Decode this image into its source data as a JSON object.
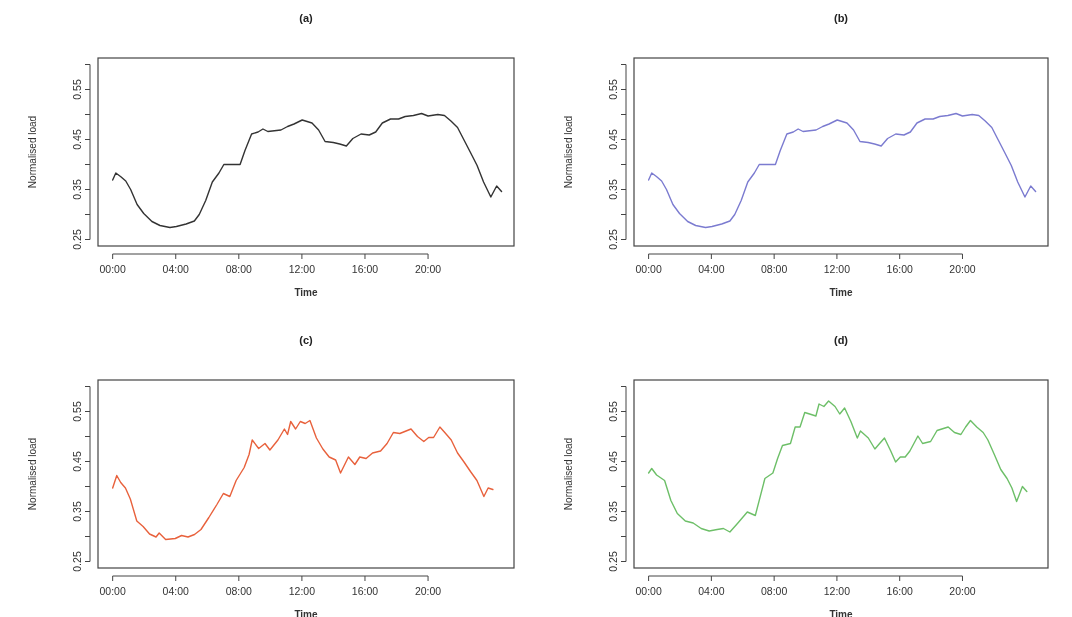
{
  "chart_data": [
    {
      "type": "line",
      "title": "(a)",
      "xlabel": "Time",
      "ylabel": "Normalised load",
      "xlim": [
        -0.93,
        25.45
      ],
      "ylim": [
        0.237,
        0.613
      ],
      "xticks": [
        {
          "value": 0,
          "label": "00:00"
        },
        {
          "value": 4,
          "label": "04:00"
        },
        {
          "value": 8,
          "label": "08:00"
        },
        {
          "value": 12,
          "label": "12:00"
        },
        {
          "value": 16,
          "label": "16:00"
        },
        {
          "value": 20,
          "label": "20:00"
        }
      ],
      "yticks": [
        {
          "value": 0.25,
          "label": "0.25"
        },
        {
          "value": 0.3,
          "label": null
        },
        {
          "value": 0.35,
          "label": "0.35"
        },
        {
          "value": 0.4,
          "label": null
        },
        {
          "value": 0.45,
          "label": "0.45"
        },
        {
          "value": 0.5,
          "label": null
        },
        {
          "value": 0.55,
          "label": "0.55"
        },
        {
          "value": 0.6,
          "label": null
        }
      ],
      "x": [
        0,
        0.2,
        0.5,
        0.83,
        1.14,
        1.55,
        1.97,
        2.49,
        3.0,
        3.63,
        4.04,
        4.66,
        5.18,
        5.49,
        5.9,
        6.32,
        6.74,
        7.05,
        7.56,
        8.08,
        8.39,
        8.81,
        9.22,
        9.53,
        9.84,
        10.67,
        11.09,
        11.5,
        12.02,
        12.64,
        13.06,
        13.47,
        13.99,
        14.4,
        14.82,
        15.23,
        15.75,
        16.27,
        16.68,
        17.1,
        17.62,
        18.13,
        18.55,
        19.07,
        19.59,
        20.0,
        20.62,
        21.04,
        21.45,
        21.87,
        22.28,
        22.69,
        23.11,
        23.52,
        23.98,
        24.35,
        24.66
      ],
      "series": [
        {
          "color": "#333333",
          "values": [
            0.369,
            0.383,
            0.376,
            0.367,
            0.35,
            0.32,
            0.302,
            0.286,
            0.278,
            0.274,
            0.276,
            0.281,
            0.287,
            0.3,
            0.328,
            0.365,
            0.383,
            0.4,
            0.4,
            0.4,
            0.428,
            0.461,
            0.465,
            0.471,
            0.466,
            0.469,
            0.476,
            0.481,
            0.489,
            0.483,
            0.469,
            0.446,
            0.444,
            0.441,
            0.437,
            0.452,
            0.461,
            0.459,
            0.465,
            0.483,
            0.491,
            0.491,
            0.496,
            0.498,
            0.502,
            0.497,
            0.5,
            0.498,
            0.487,
            0.474,
            0.449,
            0.424,
            0.398,
            0.365,
            0.335,
            0.357,
            0.346
          ]
        }
      ]
    },
    {
      "type": "line",
      "title": "(b)",
      "xlabel": "Time",
      "ylabel": "Normalised load",
      "xlim": [
        -0.93,
        25.45
      ],
      "ylim": [
        0.237,
        0.613
      ],
      "xticks": [
        {
          "value": 0,
          "label": "00:00"
        },
        {
          "value": 4,
          "label": "04:00"
        },
        {
          "value": 8,
          "label": "08:00"
        },
        {
          "value": 12,
          "label": "12:00"
        },
        {
          "value": 16,
          "label": "16:00"
        },
        {
          "value": 20,
          "label": "20:00"
        }
      ],
      "yticks": [
        {
          "value": 0.25,
          "label": "0.25"
        },
        {
          "value": 0.3,
          "label": null
        },
        {
          "value": 0.35,
          "label": "0.35"
        },
        {
          "value": 0.4,
          "label": null
        },
        {
          "value": 0.45,
          "label": "0.45"
        },
        {
          "value": 0.5,
          "label": null
        },
        {
          "value": 0.55,
          "label": "0.55"
        },
        {
          "value": 0.6,
          "label": null
        }
      ],
      "x": [
        0,
        0.2,
        0.5,
        0.83,
        1.14,
        1.55,
        1.97,
        2.49,
        3.0,
        3.63,
        4.04,
        4.66,
        5.18,
        5.49,
        5.9,
        6.32,
        6.74,
        7.05,
        7.56,
        8.08,
        8.39,
        8.81,
        9.22,
        9.53,
        9.84,
        10.67,
        11.09,
        11.5,
        12.02,
        12.64,
        13.06,
        13.47,
        13.99,
        14.4,
        14.82,
        15.23,
        15.75,
        16.27,
        16.68,
        17.1,
        17.62,
        18.13,
        18.55,
        19.07,
        19.59,
        20.0,
        20.62,
        21.04,
        21.45,
        21.87,
        22.28,
        22.69,
        23.11,
        23.52,
        23.98,
        24.35,
        24.66
      ],
      "series": [
        {
          "color": "#7b7bd0",
          "values": [
            0.369,
            0.383,
            0.376,
            0.367,
            0.35,
            0.32,
            0.302,
            0.286,
            0.278,
            0.274,
            0.276,
            0.281,
            0.287,
            0.3,
            0.328,
            0.365,
            0.383,
            0.4,
            0.4,
            0.4,
            0.428,
            0.461,
            0.465,
            0.471,
            0.466,
            0.469,
            0.476,
            0.481,
            0.489,
            0.483,
            0.469,
            0.446,
            0.444,
            0.441,
            0.437,
            0.452,
            0.461,
            0.459,
            0.465,
            0.483,
            0.491,
            0.491,
            0.496,
            0.498,
            0.502,
            0.497,
            0.5,
            0.498,
            0.487,
            0.474,
            0.449,
            0.424,
            0.398,
            0.365,
            0.335,
            0.357,
            0.346
          ]
        }
      ]
    },
    {
      "type": "line",
      "title": "(c)",
      "xlabel": "Time",
      "ylabel": "Normalised load",
      "xlim": [
        -0.93,
        25.45
      ],
      "ylim": [
        0.237,
        0.613
      ],
      "xticks": [
        {
          "value": 0,
          "label": "00:00"
        },
        {
          "value": 4,
          "label": "04:00"
        },
        {
          "value": 8,
          "label": "08:00"
        },
        {
          "value": 12,
          "label": "12:00"
        },
        {
          "value": 16,
          "label": "16:00"
        },
        {
          "value": 20,
          "label": "20:00"
        }
      ],
      "yticks": [
        {
          "value": 0.25,
          "label": "0.25"
        },
        {
          "value": 0.3,
          "label": null
        },
        {
          "value": 0.35,
          "label": "0.35"
        },
        {
          "value": 0.4,
          "label": null
        },
        {
          "value": 0.45,
          "label": "0.45"
        },
        {
          "value": 0.5,
          "label": null
        },
        {
          "value": 0.55,
          "label": "0.55"
        },
        {
          "value": 0.6,
          "label": null
        }
      ],
      "x": [
        0,
        0.26,
        0.51,
        0.81,
        1.12,
        1.53,
        1.93,
        2.34,
        2.75,
        2.95,
        3.36,
        3.97,
        4.37,
        4.78,
        5.19,
        5.6,
        6.1,
        6.61,
        7.02,
        7.43,
        7.83,
        8.34,
        8.65,
        8.85,
        9.26,
        9.66,
        9.97,
        10.48,
        10.89,
        11.09,
        11.29,
        11.6,
        11.9,
        12.21,
        12.51,
        12.92,
        13.33,
        13.73,
        14.14,
        14.45,
        14.95,
        15.36,
        15.67,
        16.07,
        16.48,
        16.99,
        17.4,
        17.8,
        18.21,
        18.92,
        19.33,
        19.73,
        20.04,
        20.35,
        20.75,
        21.06,
        21.47,
        21.87,
        22.28,
        22.69,
        23.1,
        23.54,
        23.81,
        24.11
      ],
      "series": [
        {
          "color": "#e8613c",
          "values": [
            0.397,
            0.422,
            0.408,
            0.397,
            0.375,
            0.331,
            0.32,
            0.305,
            0.299,
            0.307,
            0.294,
            0.296,
            0.302,
            0.299,
            0.304,
            0.314,
            0.338,
            0.364,
            0.386,
            0.38,
            0.412,
            0.438,
            0.464,
            0.493,
            0.476,
            0.486,
            0.473,
            0.493,
            0.515,
            0.504,
            0.53,
            0.515,
            0.53,
            0.526,
            0.532,
            0.497,
            0.475,
            0.459,
            0.453,
            0.427,
            0.459,
            0.444,
            0.459,
            0.456,
            0.467,
            0.471,
            0.486,
            0.508,
            0.506,
            0.515,
            0.5,
            0.49,
            0.498,
            0.498,
            0.519,
            0.508,
            0.493,
            0.467,
            0.449,
            0.43,
            0.412,
            0.38,
            0.397,
            0.394
          ]
        }
      ]
    },
    {
      "type": "line",
      "title": "(d)",
      "xlabel": "Time",
      "ylabel": "Normalised load",
      "xlim": [
        -0.93,
        25.45
      ],
      "ylim": [
        0.237,
        0.613
      ],
      "xticks": [
        {
          "value": 0,
          "label": "00:00"
        },
        {
          "value": 4,
          "label": "04:00"
        },
        {
          "value": 8,
          "label": "08:00"
        },
        {
          "value": 12,
          "label": "12:00"
        },
        {
          "value": 16,
          "label": "16:00"
        },
        {
          "value": 20,
          "label": "20:00"
        }
      ],
      "yticks": [
        {
          "value": 0.25,
          "label": "0.25"
        },
        {
          "value": 0.3,
          "label": null
        },
        {
          "value": 0.35,
          "label": "0.35"
        },
        {
          "value": 0.4,
          "label": null
        },
        {
          "value": 0.45,
          "label": "0.45"
        },
        {
          "value": 0.5,
          "label": null
        },
        {
          "value": 0.55,
          "label": "0.55"
        },
        {
          "value": 0.6,
          "label": null
        }
      ],
      "x": [
        0,
        0.2,
        0.51,
        1.02,
        1.42,
        1.83,
        2.34,
        2.84,
        3.35,
        3.86,
        4.37,
        4.77,
        5.18,
        5.69,
        6.29,
        6.8,
        7.41,
        7.92,
        8.22,
        8.53,
        9.04,
        9.34,
        9.65,
        9.95,
        10.26,
        10.66,
        10.86,
        11.17,
        11.47,
        11.88,
        12.18,
        12.49,
        12.89,
        13.3,
        13.5,
        14.0,
        14.42,
        14.72,
        15.03,
        15.43,
        15.74,
        16.04,
        16.35,
        16.65,
        17.16,
        17.46,
        17.97,
        18.38,
        19.09,
        19.49,
        19.9,
        20.2,
        20.51,
        20.91,
        21.32,
        21.62,
        22.03,
        22.44,
        22.84,
        23.15,
        23.45,
        23.82,
        24.1
      ],
      "series": [
        {
          "color": "#6dbf68",
          "values": [
            0.427,
            0.436,
            0.423,
            0.412,
            0.372,
            0.346,
            0.331,
            0.327,
            0.316,
            0.311,
            0.314,
            0.316,
            0.309,
            0.327,
            0.349,
            0.342,
            0.416,
            0.427,
            0.456,
            0.482,
            0.486,
            0.519,
            0.519,
            0.548,
            0.545,
            0.541,
            0.565,
            0.56,
            0.571,
            0.56,
            0.545,
            0.557,
            0.53,
            0.497,
            0.511,
            0.497,
            0.475,
            0.486,
            0.497,
            0.471,
            0.449,
            0.459,
            0.459,
            0.471,
            0.501,
            0.486,
            0.49,
            0.512,
            0.519,
            0.508,
            0.504,
            0.519,
            0.532,
            0.519,
            0.508,
            0.493,
            0.464,
            0.434,
            0.416,
            0.397,
            0.37,
            0.4,
            0.39
          ]
        }
      ]
    }
  ]
}
